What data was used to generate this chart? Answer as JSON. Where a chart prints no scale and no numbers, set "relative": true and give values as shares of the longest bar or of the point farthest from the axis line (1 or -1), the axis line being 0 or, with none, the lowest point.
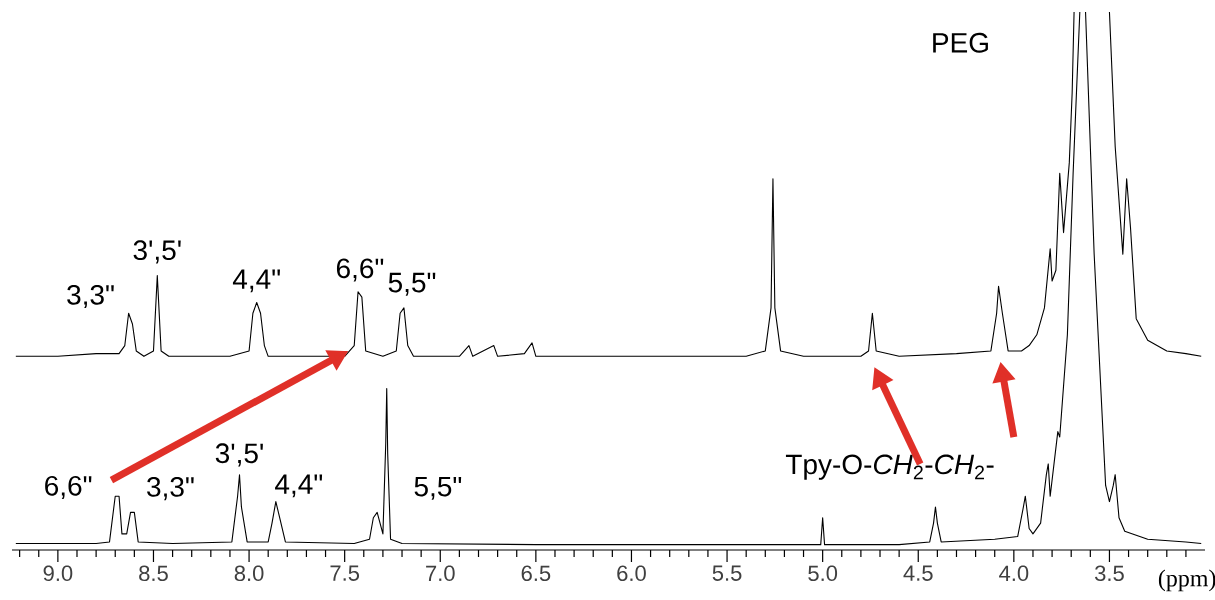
{
  "chart_data": {
    "type": "line",
    "relative": true,
    "xlabel": "(ppm)",
    "xlim": [
      9.24,
      3.0
    ],
    "xticks": [
      {
        "value": 9.2,
        "label": null
      },
      {
        "value": 9.1,
        "label": null
      },
      {
        "value": 9.0,
        "label": "9.0"
      },
      {
        "value": 8.9,
        "label": null
      },
      {
        "value": 8.8,
        "label": null
      },
      {
        "value": 8.7,
        "label": null
      },
      {
        "value": 8.6,
        "label": null
      },
      {
        "value": 8.5,
        "label": "8.5"
      },
      {
        "value": 8.4,
        "label": null
      },
      {
        "value": 8.3,
        "label": null
      },
      {
        "value": 8.2,
        "label": null
      },
      {
        "value": 8.1,
        "label": null
      },
      {
        "value": 8.0,
        "label": "8.0"
      },
      {
        "value": 7.9,
        "label": null
      },
      {
        "value": 7.8,
        "label": null
      },
      {
        "value": 7.7,
        "label": null
      },
      {
        "value": 7.6,
        "label": null
      },
      {
        "value": 7.5,
        "label": "7.5"
      },
      {
        "value": 7.4,
        "label": null
      },
      {
        "value": 7.3,
        "label": null
      },
      {
        "value": 7.2,
        "label": null
      },
      {
        "value": 7.1,
        "label": null
      },
      {
        "value": 7.0,
        "label": "7.0"
      },
      {
        "value": 6.9,
        "label": null
      },
      {
        "value": 6.8,
        "label": null
      },
      {
        "value": 6.7,
        "label": null
      },
      {
        "value": 6.6,
        "label": null
      },
      {
        "value": 6.5,
        "label": "6.5"
      },
      {
        "value": 6.4,
        "label": null
      },
      {
        "value": 6.3,
        "label": null
      },
      {
        "value": 6.2,
        "label": null
      },
      {
        "value": 6.1,
        "label": null
      },
      {
        "value": 6.0,
        "label": "6.0"
      },
      {
        "value": 5.9,
        "label": null
      },
      {
        "value": 5.8,
        "label": null
      },
      {
        "value": 5.7,
        "label": null
      },
      {
        "value": 5.6,
        "label": null
      },
      {
        "value": 5.5,
        "label": "5.5"
      },
      {
        "value": 5.4,
        "label": null
      },
      {
        "value": 5.3,
        "label": null
      },
      {
        "value": 5.2,
        "label": null
      },
      {
        "value": 5.1,
        "label": null
      },
      {
        "value": 5.0,
        "label": "5.0"
      },
      {
        "value": 4.9,
        "label": null
      },
      {
        "value": 4.8,
        "label": null
      },
      {
        "value": 4.7,
        "label": null
      },
      {
        "value": 4.6,
        "label": null
      },
      {
        "value": 4.5,
        "label": "4.5"
      },
      {
        "value": 4.4,
        "label": null
      },
      {
        "value": 4.3,
        "label": null
      },
      {
        "value": 4.2,
        "label": null
      },
      {
        "value": 4.1,
        "label": null
      },
      {
        "value": 4.0,
        "label": "4.0"
      },
      {
        "value": 3.9,
        "label": null
      },
      {
        "value": 3.8,
        "label": null
      },
      {
        "value": 3.7,
        "label": null
      },
      {
        "value": 3.6,
        "label": null
      },
      {
        "value": 3.5,
        "label": "3.5"
      },
      {
        "value": 3.4,
        "label": null
      },
      {
        "value": 3.3,
        "label": null
      },
      {
        "value": 3.2,
        "label": null
      },
      {
        "value": 3.1,
        "label": null
      }
    ],
    "series": [
      {
        "color": "#000000",
        "x": [
          9.22,
          9.0,
          8.8,
          8.68,
          8.65,
          8.63,
          8.62,
          8.61,
          8.59,
          8.55,
          8.5,
          8.48,
          8.46,
          8.42,
          8.3,
          8.1,
          8.0,
          7.98,
          7.96,
          7.94,
          7.92,
          7.9,
          7.7,
          7.5,
          7.45,
          7.43,
          7.41,
          7.39,
          7.3,
          7.23,
          7.21,
          7.19,
          7.17,
          7.14,
          6.9,
          6.85,
          6.83,
          6.72,
          6.7,
          6.56,
          6.52,
          6.5,
          6.2,
          5.8,
          5.4,
          5.3,
          5.27,
          5.26,
          5.25,
          5.22,
          5.1,
          4.8,
          4.76,
          4.74,
          4.72,
          4.6,
          4.3,
          4.12,
          4.09,
          4.08,
          4.06,
          4.03,
          3.96,
          3.92,
          3.88,
          3.84,
          3.81,
          3.8,
          3.78,
          3.76,
          3.74,
          3.71,
          3.695,
          3.685,
          3.6,
          3.5,
          3.47,
          3.43,
          3.41,
          3.39,
          3.36,
          3.3,
          3.2,
          3.1,
          3.02
        ],
        "values": [
          0.36,
          0.36,
          0.365,
          0.365,
          0.38,
          0.44,
          0.43,
          0.42,
          0.37,
          0.36,
          0.37,
          0.51,
          0.37,
          0.36,
          0.36,
          0.36,
          0.37,
          0.44,
          0.46,
          0.44,
          0.38,
          0.36,
          0.36,
          0.36,
          0.38,
          0.48,
          0.47,
          0.37,
          0.36,
          0.37,
          0.44,
          0.45,
          0.38,
          0.36,
          0.36,
          0.38,
          0.36,
          0.38,
          0.36,
          0.365,
          0.385,
          0.36,
          0.36,
          0.36,
          0.36,
          0.37,
          0.45,
          0.69,
          0.45,
          0.37,
          0.36,
          0.36,
          0.37,
          0.44,
          0.37,
          0.36,
          0.365,
          0.37,
          0.44,
          0.49,
          0.44,
          0.37,
          0.37,
          0.38,
          0.4,
          0.45,
          0.56,
          0.5,
          0.52,
          0.7,
          0.59,
          0.72,
          0.85,
          1,
          null,
          1,
          0.75,
          0.55,
          0.69,
          0.6,
          0.43,
          0.39,
          0.37,
          0.365,
          0.36
        ]
      },
      {
        "color": "#000000",
        "x": [
          9.22,
          8.8,
          8.73,
          8.7,
          8.68,
          8.665,
          8.64,
          8.62,
          8.6,
          8.58,
          8.4,
          8.09,
          8.06,
          8.05,
          8.04,
          8.01,
          7.9,
          7.88,
          7.86,
          7.84,
          7.81,
          7.45,
          7.37,
          7.35,
          7.33,
          7.3,
          7.285,
          7.28,
          7.275,
          7.26,
          7.2,
          6.5,
          5.5,
          5.01,
          5.0,
          4.99,
          4.6,
          4.44,
          4.42,
          4.41,
          4.4,
          4.38,
          4.1,
          3.98,
          3.95,
          3.94,
          3.92,
          3.9,
          3.86,
          3.83,
          3.82,
          3.81,
          3.79,
          3.77,
          3.76,
          3.72,
          3.69,
          3.655,
          3.635,
          3.625,
          3.58,
          3.52,
          3.5,
          3.48,
          3.47,
          3.45,
          3.42,
          3.3,
          3.1,
          3.02
        ],
        "values": [
          0.012,
          0.012,
          0.015,
          0.1,
          0.1,
          0.03,
          0.03,
          0.07,
          0.07,
          0.015,
          0.012,
          0.015,
          0.1,
          0.14,
          0.08,
          0.015,
          0.015,
          0.05,
          0.09,
          0.06,
          0.015,
          0.012,
          0.02,
          0.06,
          0.07,
          0.03,
          0.2,
          0.3,
          0.18,
          0.02,
          0.012,
          0.01,
          0.01,
          0.01,
          0.06,
          0.01,
          0.01,
          0.015,
          0.05,
          0.08,
          0.05,
          0.015,
          0.02,
          0.025,
          0.08,
          0.1,
          0.04,
          0.03,
          0.05,
          0.14,
          0.16,
          0.1,
          0.16,
          0.22,
          0.21,
          0.4,
          0.7,
          1,
          null,
          1,
          0.55,
          0.12,
          0.09,
          0.12,
          0.14,
          0.06,
          0.035,
          0.02,
          0.015,
          0.012
        ]
      }
    ],
    "annotations": [
      {
        "text": "3,3\"",
        "x": 8.62,
        "y": 0.44
      },
      {
        "text": "3',5'",
        "x": 8.48,
        "y": 0.51
      },
      {
        "text": "4,4\"",
        "x": 7.96,
        "y": 0.46
      },
      {
        "text": "6,6\"",
        "x": 7.42,
        "y": 0.48
      },
      {
        "text": "5,5\"",
        "x": 7.2,
        "y": 0.45
      },
      "PEG",
      {
        "text": "6,6\"",
        "x": 8.69,
        "y": 0.1
      },
      {
        "text": "3,3\"",
        "x": 8.61,
        "y": 0.07
      },
      {
        "text": "3',5'",
        "x": 8.05,
        "y": 0.14
      },
      {
        "text": "4,4\"",
        "x": 7.86,
        "y": 0.09
      },
      "5,5\"",
      "Tpy-O-*CH*$_{2}$-*CH*$_{2}$-"
    ]
  }
}
